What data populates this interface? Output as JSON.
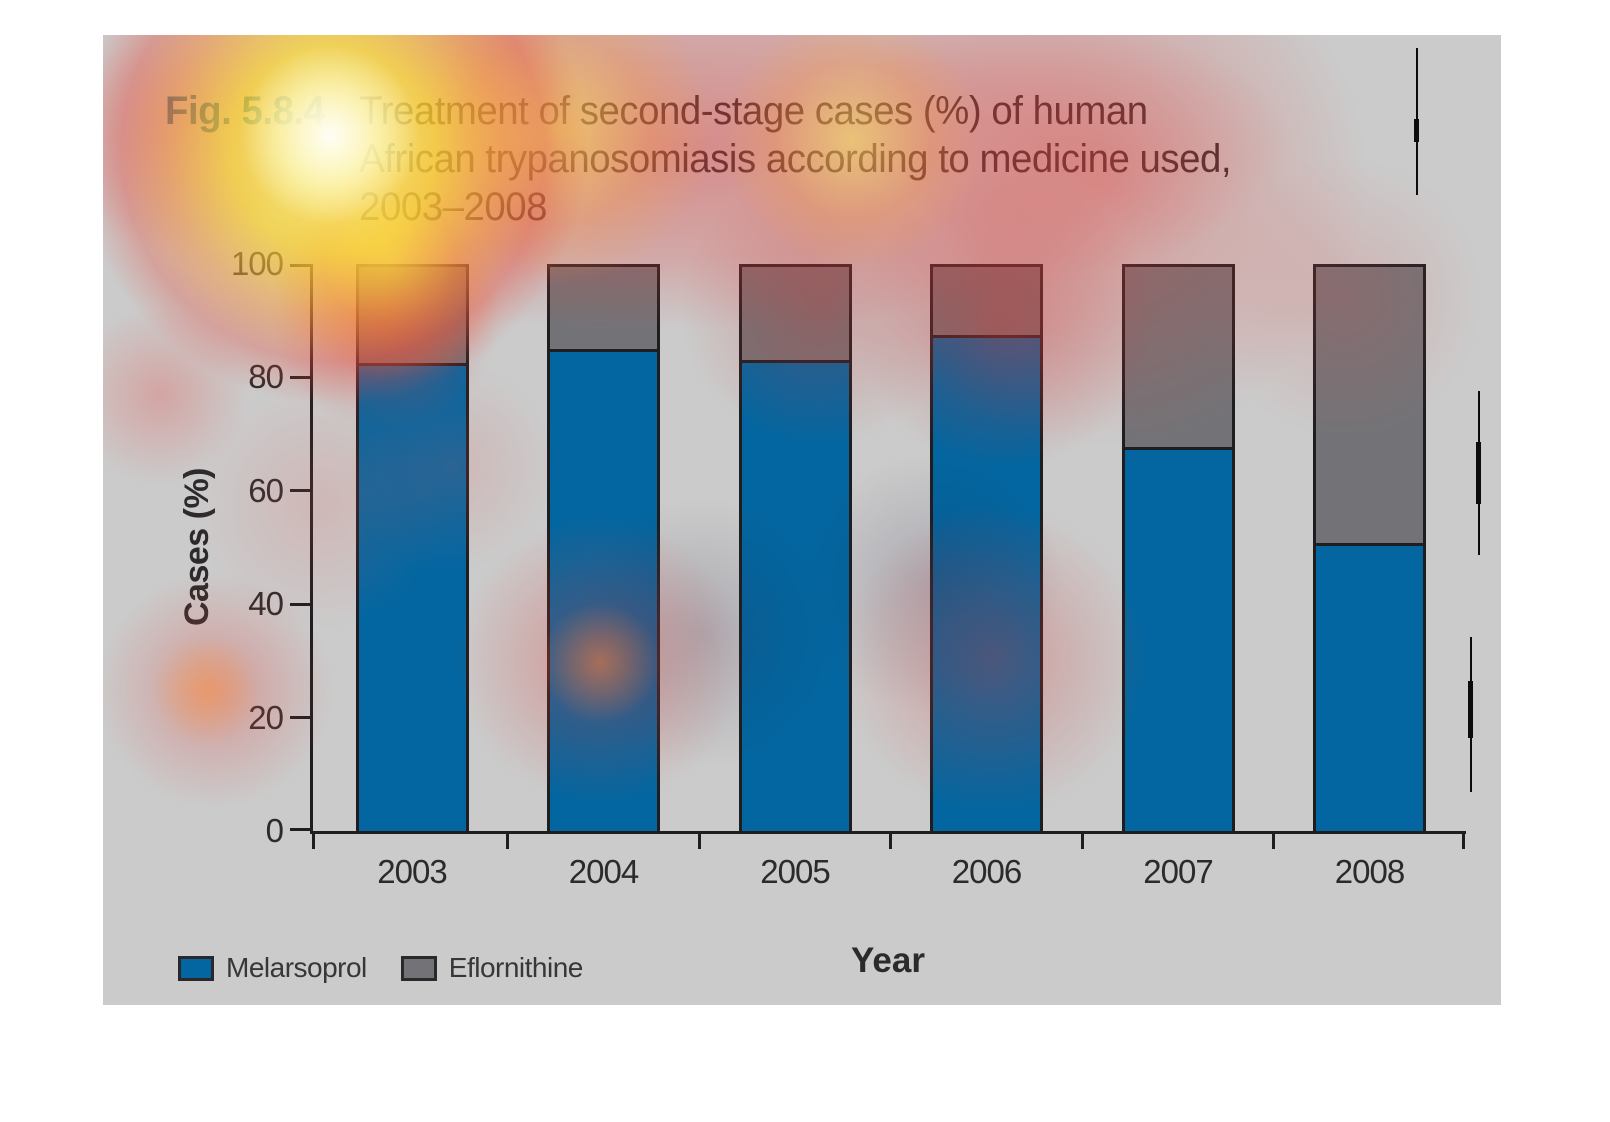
{
  "figure": {
    "fig_label": "Fig. 5.8.4",
    "title_lines": [
      "Treatment of second-stage cases (%) of human",
      "African trypanosomiasis according to medicine used,",
      "2003–2008"
    ]
  },
  "chart_data": {
    "type": "bar",
    "stacked": true,
    "categories": [
      "2003",
      "2004",
      "2005",
      "2006",
      "2007",
      "2008"
    ],
    "series": [
      {
        "name": "Melarsoprol",
        "color": "#0366a0",
        "values": [
          83,
          85.5,
          83.5,
          88,
          68,
          51
        ]
      },
      {
        "name": "Eflornithine",
        "color": "#737377",
        "values": [
          17,
          14.5,
          16.5,
          12,
          32,
          49
        ]
      }
    ],
    "xlabel": "Year",
    "ylabel": "Cases (%)",
    "ylim": [
      0,
      100
    ],
    "yticks": [
      0,
      20,
      40,
      60,
      80,
      100
    ],
    "grid": false,
    "legend_position": "bottom-left",
    "bar_outline_color": "#1e1d20",
    "panel_background": "#cbcbcb"
  },
  "overlay": {
    "type": "attention-heatmap"
  }
}
